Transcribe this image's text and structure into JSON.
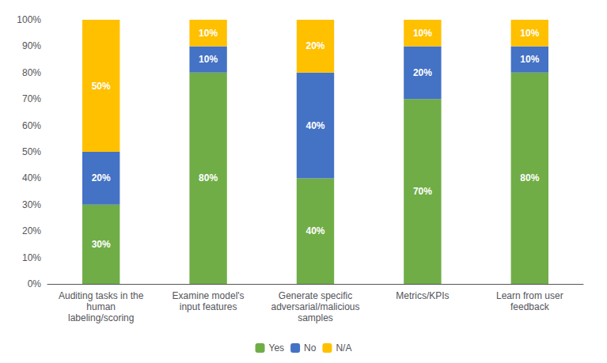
{
  "chart_data": {
    "type": "bar",
    "categories": [
      "Auditing tasks in the\nhuman\nlabeling/scoring",
      "Examine model's\ninput features",
      "Generate specific\nadversarial/malicious\nsamples",
      "Metrics/KPIs",
      "Learn from user\nfeedback"
    ],
    "series": [
      {
        "name": "Yes",
        "color": "#70AD47",
        "values": [
          30,
          80,
          40,
          70,
          80
        ],
        "value_labels": [
          "30%",
          "80%",
          "40%",
          "70%",
          "80%"
        ]
      },
      {
        "name": "No",
        "color": "#4472C4",
        "values": [
          20,
          10,
          40,
          20,
          10
        ],
        "value_labels": [
          "20%",
          "10%",
          "40%",
          "20%",
          "10%"
        ]
      },
      {
        "name": "N/A",
        "color": "#FFC000",
        "values": [
          50,
          10,
          20,
          10,
          10
        ],
        "value_labels": [
          "50%",
          "10%",
          "20%",
          "10%",
          "10%"
        ]
      }
    ],
    "stacked": true,
    "data_labels": true,
    "ylim": [
      0,
      100
    ],
    "yticks": [
      {
        "value": 0,
        "label": "0%"
      },
      {
        "value": 10,
        "label": "10%"
      },
      {
        "value": 20,
        "label": "20%"
      },
      {
        "value": 30,
        "label": "30%"
      },
      {
        "value": 40,
        "label": "40%"
      },
      {
        "value": 50,
        "label": "50%"
      },
      {
        "value": 60,
        "label": "60%"
      },
      {
        "value": 70,
        "label": "70%"
      },
      {
        "value": 80,
        "label": "80%"
      },
      {
        "value": 90,
        "label": "90%"
      },
      {
        "value": 100,
        "label": "100%"
      }
    ],
    "grid": false,
    "legend": "bottom"
  }
}
